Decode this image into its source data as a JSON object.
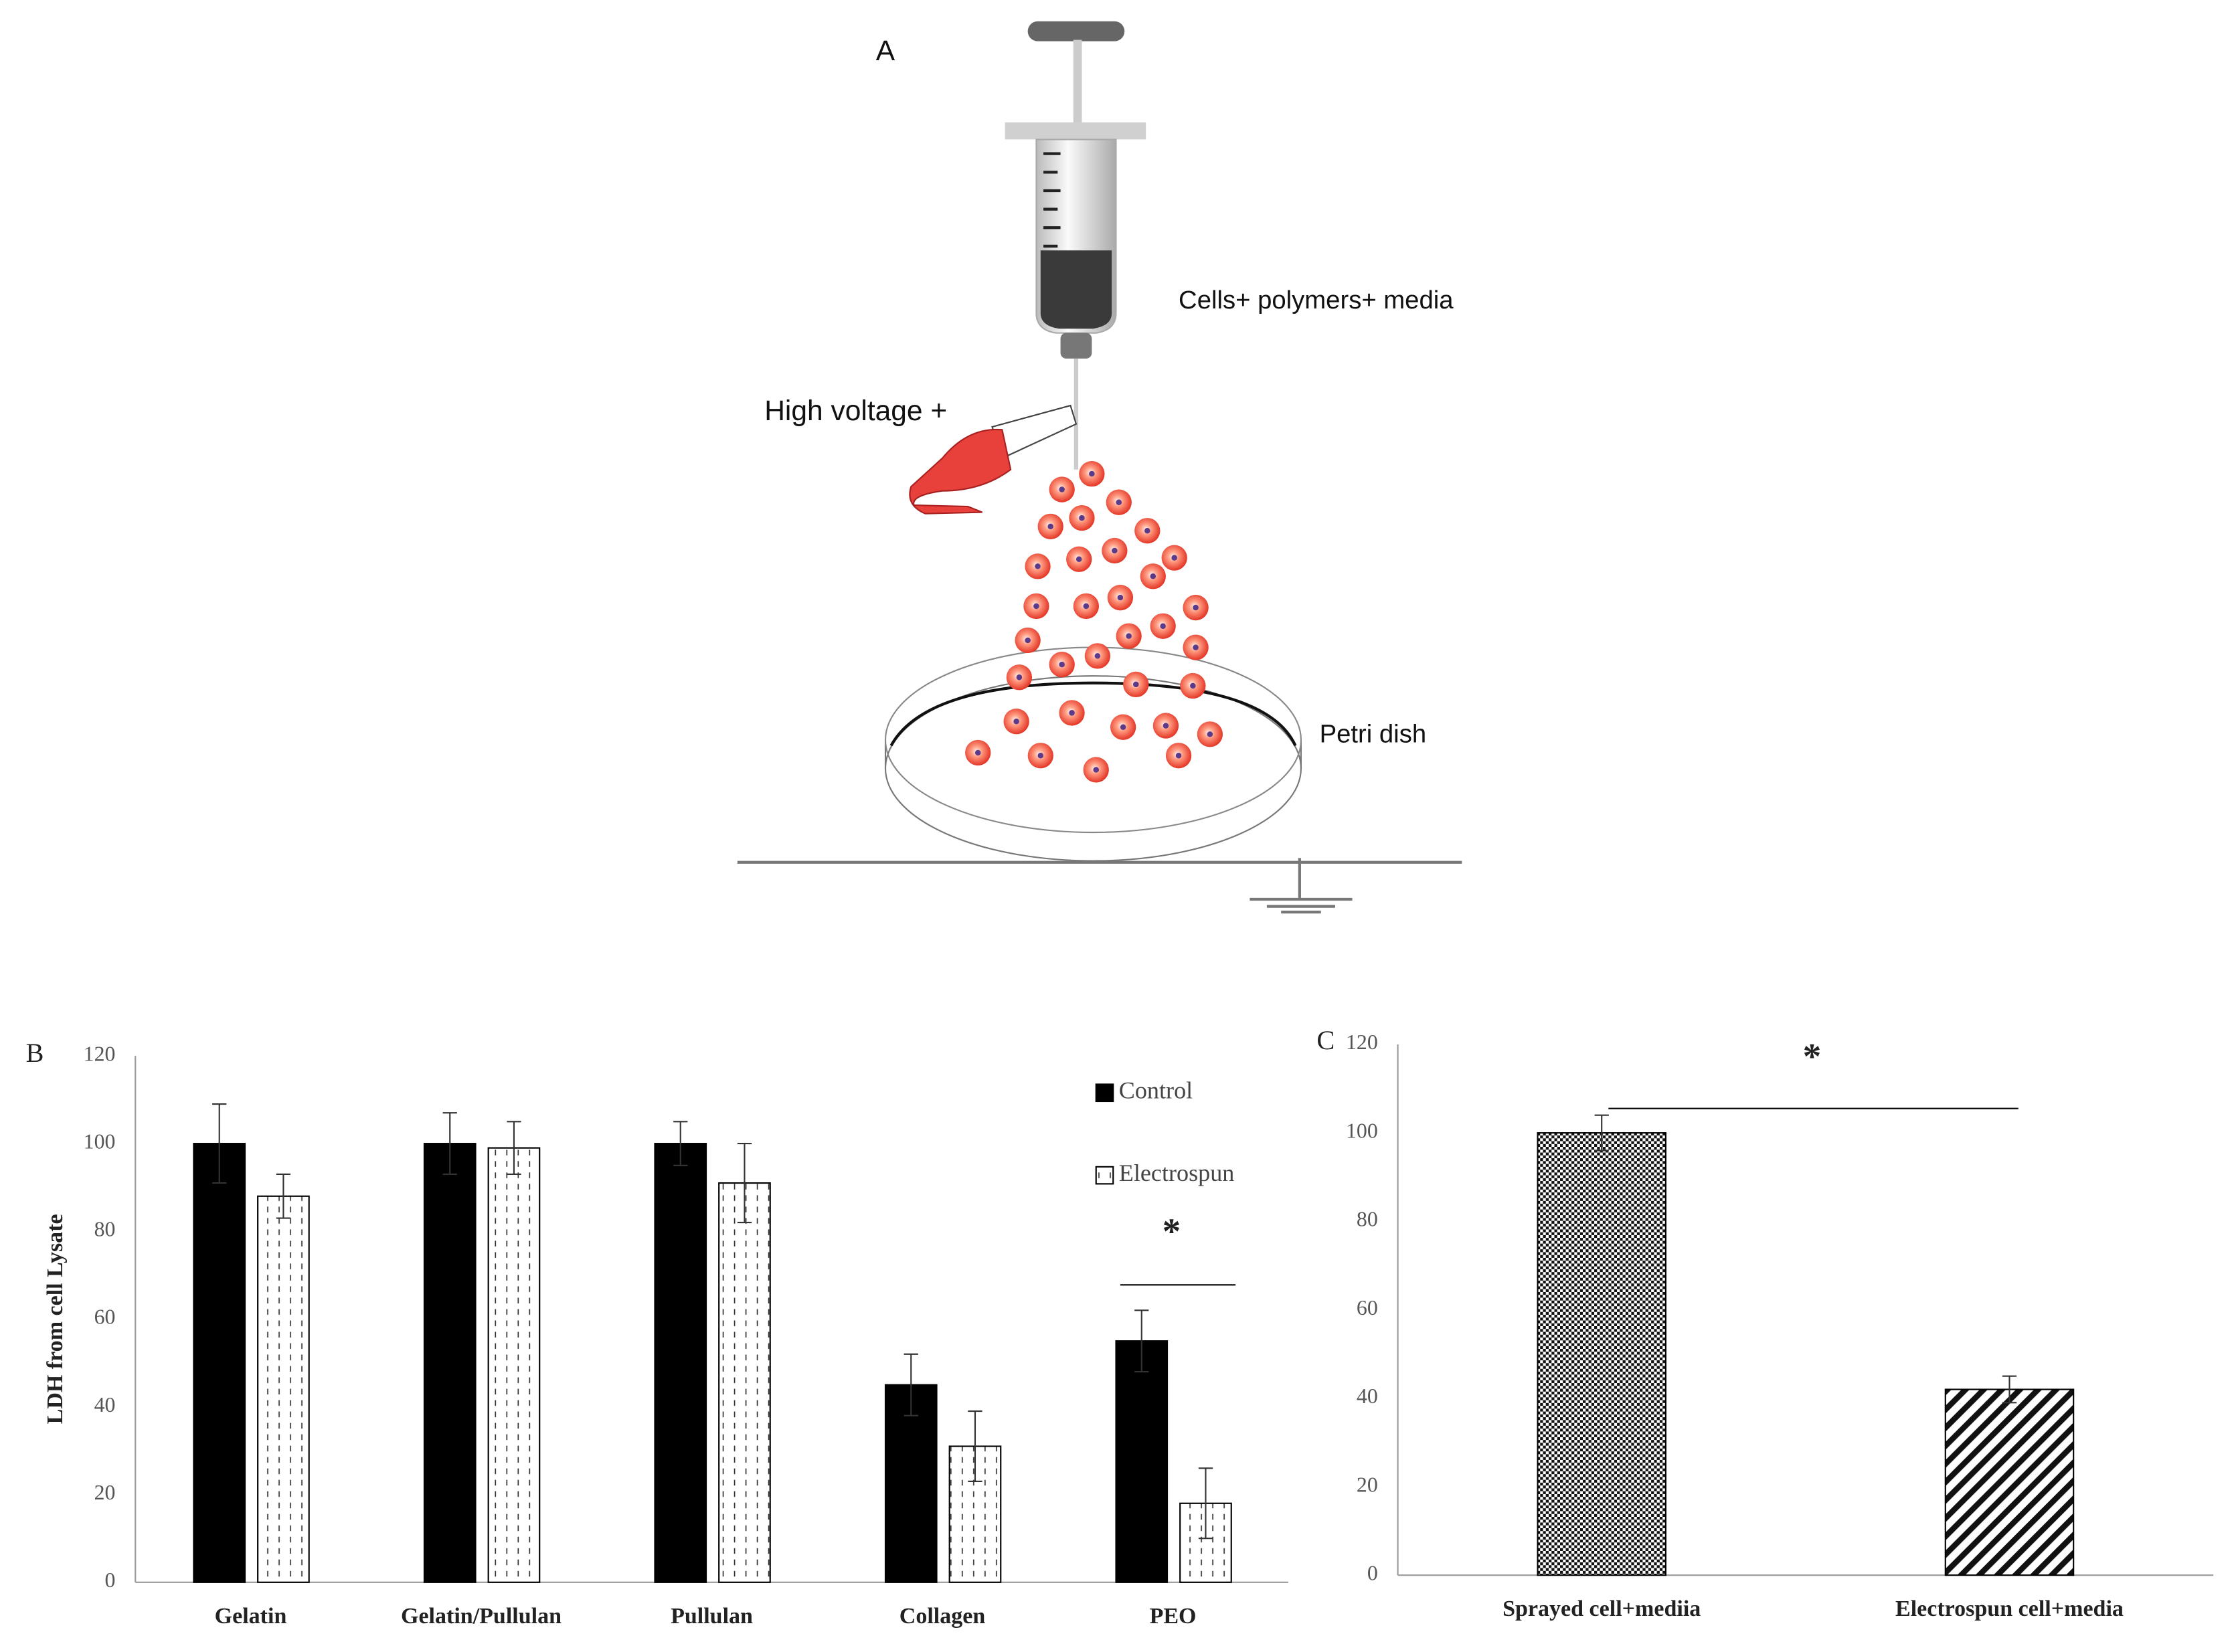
{
  "diagram": {
    "panel": "A",
    "syringe_label": "Cells+ polymers+ media",
    "voltage_label": "High voltage +",
    "dish_label": "Petri dish"
  },
  "chart_data": [
    {
      "type": "bar",
      "panel": "B",
      "ylabel": "LDH from cell Lysate",
      "categories": [
        "Gelatin",
        "Gelatin/Pullulan",
        "Pullulan",
        "Collagen",
        "PEO"
      ],
      "series": [
        {
          "name": "Control",
          "color": "#000000",
          "values": [
            100,
            100,
            100,
            45,
            55
          ],
          "errors": [
            9,
            7,
            5,
            7,
            7
          ]
        },
        {
          "name": "Electrospun",
          "color": "#000000",
          "pattern": "dashed",
          "values": [
            88,
            99,
            91,
            31,
            18
          ],
          "errors": [
            5,
            6,
            9,
            8,
            8
          ]
        }
      ],
      "annotation": "*",
      "ylim": [
        0,
        120
      ],
      "yticks": [
        0,
        20,
        40,
        60,
        80,
        100,
        120
      ],
      "grid": false
    },
    {
      "type": "bar",
      "panel": "C",
      "categories": [
        "Sprayed cell+mediia",
        "Electrospun cell+media"
      ],
      "values": [
        100,
        42
      ],
      "errors": [
        4,
        3
      ],
      "color": "#000000",
      "patterns": [
        "checkered",
        "hatched"
      ],
      "annotation": "*",
      "ylim": [
        0,
        120
      ],
      "yticks": [
        0,
        20,
        40,
        60,
        80,
        100,
        120
      ],
      "grid": false
    }
  ]
}
